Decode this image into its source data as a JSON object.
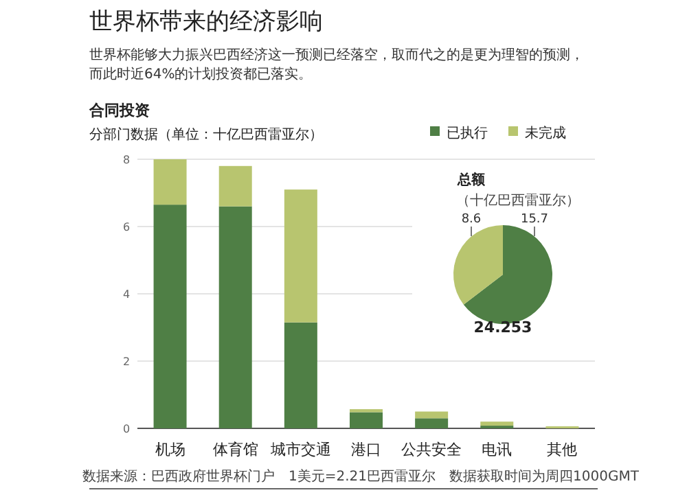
{
  "chart_data": [
    {
      "type": "bar",
      "title": "世界杯带来的经济影响",
      "subtitle": "世界杯能够大力振兴巴西经济这一预测已经落空，取而代之的是更为理智的预测，而此时近64%的计划投资都已落实。",
      "ylabel": "分部门数据（单位：十亿巴西雷亚尔）",
      "annotations": [
        "合同投资",
        "数据来源：巴西政府世界杯门户",
        "1美元=2.21巴西雷亚尔",
        "数据获取时间为周四1000GMT"
      ],
      "categories": [
        "机场",
        "体育馆",
        "城市交通",
        "港口",
        "公共安全",
        "电讯",
        "其他"
      ],
      "stacked": true,
      "series": [
        {
          "name": "已执行",
          "color": "#4f7f45",
          "values": [
            6.65,
            6.6,
            3.15,
            0.48,
            0.3,
            0.08,
            null
          ]
        },
        {
          "name": "未完成",
          "color": "#b8c56f",
          "values": [
            1.35,
            1.2,
            3.95,
            0.09,
            0.2,
            0.12,
            0.06
          ]
        }
      ],
      "ylim": [
        0,
        8
      ],
      "yticks": [
        0,
        2,
        4,
        6,
        8
      ],
      "grid": "y",
      "legend": "top right"
    },
    {
      "type": "pie",
      "title": "总额",
      "subtitle": "（十亿巴西雷亚尔）",
      "categories": [
        null,
        null
      ],
      "values": [
        15.7,
        8.6
      ],
      "colors": [
        "#4f7f45",
        "#b8c56f"
      ],
      "data_labels": true,
      "annotations": [
        "24.253"
      ]
    }
  ]
}
